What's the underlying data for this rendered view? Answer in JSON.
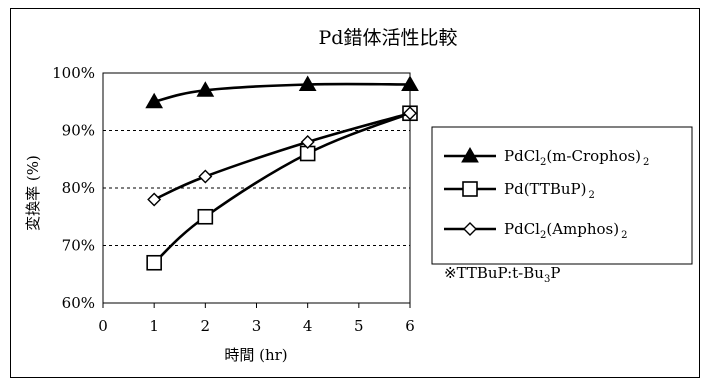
{
  "chart_data": {
    "type": "line",
    "title": "Pd錯体活性比較",
    "xlabel": "時間 (hr)",
    "ylabel": "変換率 (%)",
    "xlim": [
      0,
      6
    ],
    "ylim": [
      0.6,
      1.0
    ],
    "x_ticks": [
      "0",
      "1",
      "2",
      "3",
      "4",
      "5",
      "6"
    ],
    "y_ticks": [
      "60%",
      "70%",
      "80%",
      "90%",
      "100%"
    ],
    "grid": "horizontal dashed",
    "legend_position": "right",
    "series": [
      {
        "name": "PdCl2(m-Crophos)2",
        "marker": "triangle-filled",
        "color": "#000000",
        "x": [
          1,
          2,
          4,
          6
        ],
        "values": [
          0.95,
          0.97,
          0.98,
          0.98
        ]
      },
      {
        "name": "Pd(TTBuP)2",
        "marker": "square-open",
        "color": "#000000",
        "x": [
          1,
          2,
          4,
          6
        ],
        "values": [
          0.67,
          0.75,
          0.86,
          0.93
        ]
      },
      {
        "name": "PdCl2(Amphos)2",
        "marker": "diamond-open",
        "color": "#000000",
        "x": [
          1,
          2,
          4,
          6
        ],
        "values": [
          0.78,
          0.82,
          0.88,
          0.93
        ]
      }
    ],
    "annotation": "※TTBuP:t-Bu3P"
  },
  "legend": {
    "items": [
      {
        "pre": "PdCl",
        "sub1": "2",
        "mid": "(m-Crophos)",
        "sub2": "2"
      },
      {
        "pre": "Pd(TTBuP)",
        "sub1": "",
        "mid": "",
        "sub2": "2"
      },
      {
        "pre": "PdCl",
        "sub1": "2",
        "mid": "(Amphos)",
        "sub2": "2"
      }
    ],
    "note": {
      "pre": "※TTBuP:t-Bu",
      "sub": "3",
      "post": "P"
    }
  }
}
